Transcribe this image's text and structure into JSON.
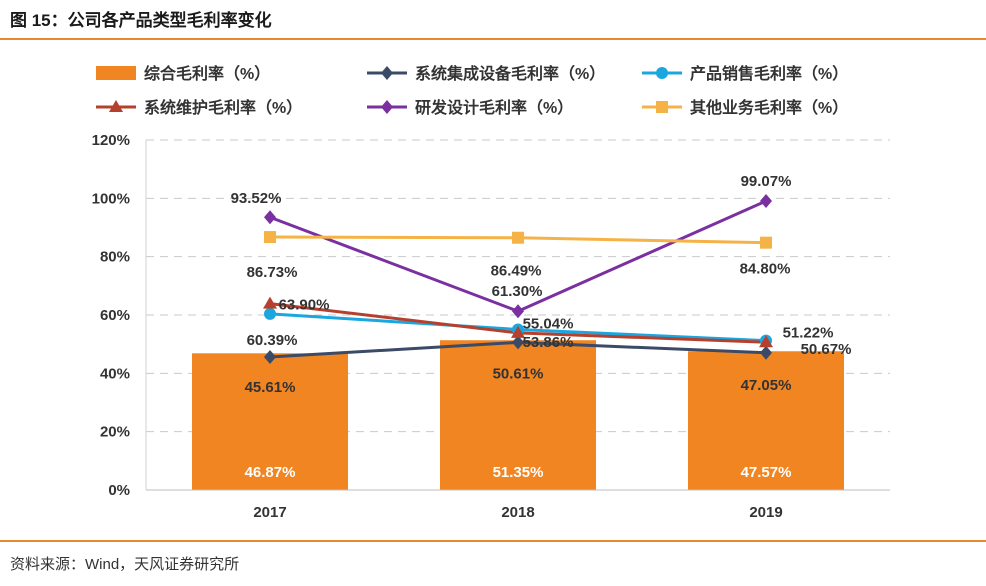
{
  "header": {
    "title": "图 15：公司各产品类型毛利率变化"
  },
  "footer": {
    "source": "资料来源：Wind，天风证券研究所"
  },
  "chart_data": {
    "type": "bar",
    "categories": [
      "2017",
      "2018",
      "2019"
    ],
    "ylim": [
      0,
      120
    ],
    "yticks": [
      "0%",
      "20%",
      "40%",
      "60%",
      "80%",
      "100%",
      "120%"
    ],
    "grid": true,
    "legend_position": "top",
    "series": [
      {
        "name": "综合毛利率（%）",
        "kind": "bar",
        "color": "#f08522",
        "values": [
          46.87,
          51.35,
          47.57
        ],
        "labels": [
          "46.87%",
          "51.35%",
          "47.57%"
        ]
      },
      {
        "name": "系统集成设备毛利率（%）",
        "kind": "line",
        "marker": "diamond",
        "color": "#3b4a66",
        "values": [
          45.61,
          50.61,
          47.05
        ],
        "labels": [
          "45.61%",
          "50.61%",
          "47.05%"
        ]
      },
      {
        "name": "产品销售毛利率（%）",
        "kind": "line",
        "marker": "circle",
        "color": "#1aa7e0",
        "values": [
          60.39,
          55.04,
          51.22
        ],
        "labels": [
          "60.39%",
          "55.04%",
          "51.22%"
        ]
      },
      {
        "name": "系统维护毛利率（%）",
        "kind": "line",
        "marker": "triangle",
        "color": "#b5402e",
        "values": [
          63.9,
          53.86,
          50.67
        ],
        "labels": [
          "63.90%",
          "53.86%",
          "50.67%"
        ]
      },
      {
        "name": "研发设计毛利率（%）",
        "kind": "line",
        "marker": "diamond",
        "color": "#7a30a0",
        "values": [
          93.52,
          61.3,
          99.07
        ],
        "labels": [
          "93.52%",
          "61.30%",
          "99.07%"
        ]
      },
      {
        "name": "其他业务毛利率（%）",
        "kind": "line",
        "marker": "square",
        "color": "#f5b347",
        "values": [
          86.73,
          86.49,
          84.8
        ],
        "labels": [
          "86.73%",
          "86.49%",
          "84.80%"
        ]
      }
    ]
  }
}
